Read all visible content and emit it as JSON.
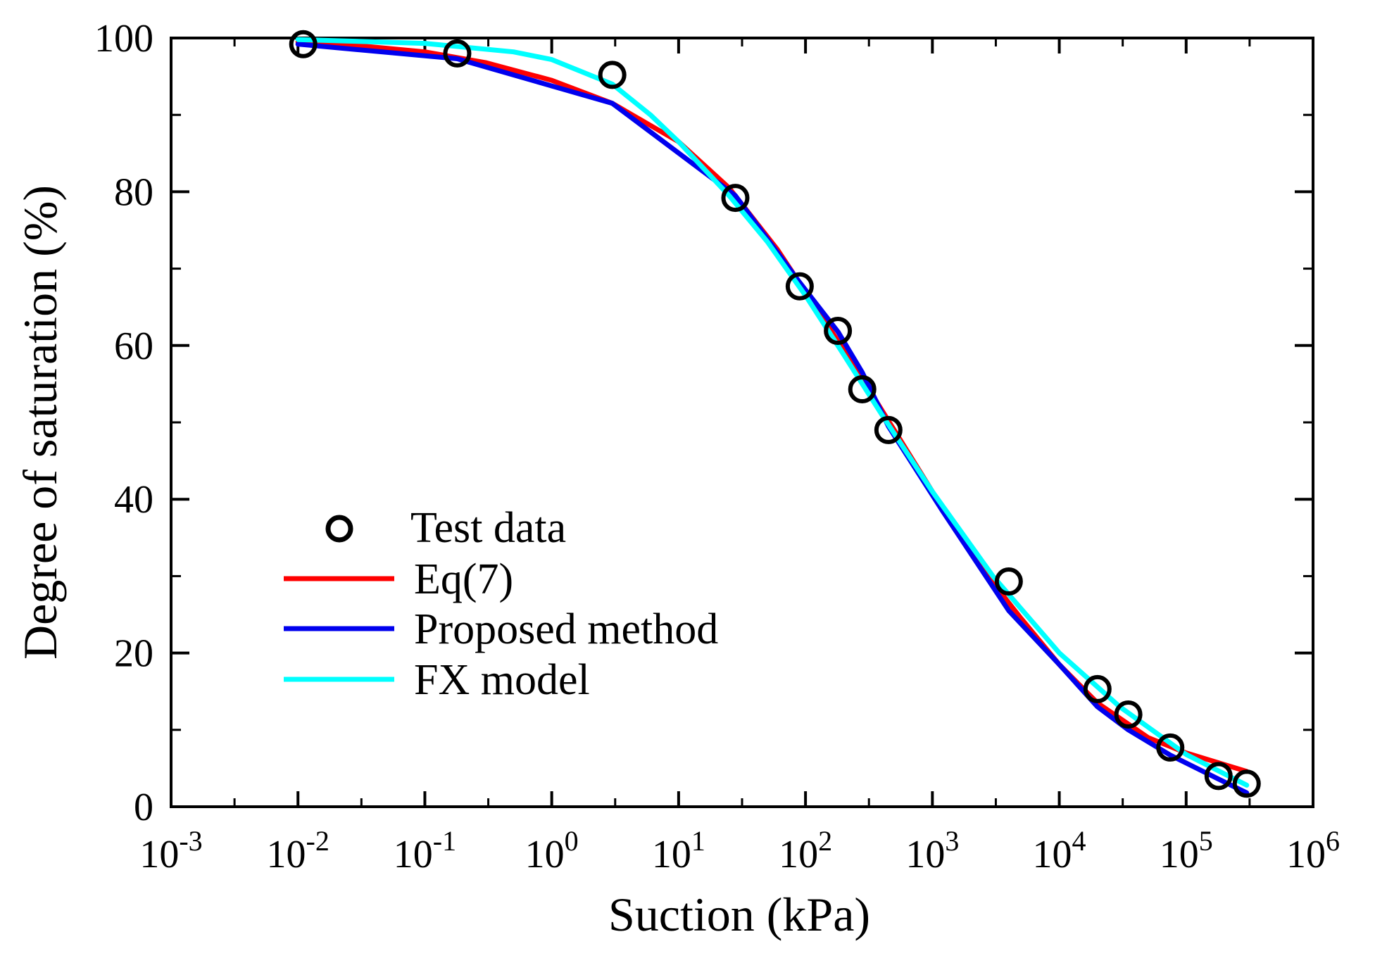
{
  "chart_data": {
    "type": "scatter",
    "title": "",
    "xlabel": "Suction (kPa)",
    "ylabel": "Degree of saturation (%)",
    "xscale": "log",
    "xlim": [
      0.001,
      1000000
    ],
    "ylim": [
      0,
      100
    ],
    "x_ticks": [
      {
        "base": "10",
        "exp": "-3",
        "value": 0.001
      },
      {
        "base": "10",
        "exp": "-2",
        "value": 0.01
      },
      {
        "base": "10",
        "exp": "-1",
        "value": 0.1
      },
      {
        "base": "10",
        "exp": "0",
        "value": 1
      },
      {
        "base": "10",
        "exp": "1",
        "value": 10
      },
      {
        "base": "10",
        "exp": "2",
        "value": 100
      },
      {
        "base": "10",
        "exp": "3",
        "value": 1000
      },
      {
        "base": "10",
        "exp": "4",
        "value": 10000
      },
      {
        "base": "10",
        "exp": "5",
        "value": 100000
      },
      {
        "base": "10",
        "exp": "6",
        "value": 1000000
      }
    ],
    "y_ticks": [
      {
        "label": "0",
        "value": 0
      },
      {
        "label": "20",
        "value": 20
      },
      {
        "label": "40",
        "value": 40
      },
      {
        "label": "60",
        "value": 60
      },
      {
        "label": "80",
        "value": 80
      },
      {
        "label": "100",
        "value": 100
      }
    ],
    "legend_position": "lower-left",
    "series": [
      {
        "name": "Test data",
        "kind": "markers",
        "marker": "open-circle",
        "color": "#000000",
        "points": [
          [
            0.011,
            99.2
          ],
          [
            0.18,
            98.0
          ],
          [
            3.0,
            95.2
          ],
          [
            28,
            79.2
          ],
          [
            90,
            67.7
          ],
          [
            180,
            61.9
          ],
          [
            280,
            54.3
          ],
          [
            450,
            49.0
          ],
          [
            4000,
            29.3
          ],
          [
            20000,
            15.3
          ],
          [
            35000,
            12.0
          ],
          [
            75000,
            7.7
          ],
          [
            180000,
            4.0
          ],
          [
            300000,
            3.0
          ]
        ]
      },
      {
        "name": "Eq(7)",
        "kind": "line",
        "color": "#ff0000",
        "points": [
          [
            0.01,
            99.5
          ],
          [
            0.03,
            99.0
          ],
          [
            0.1,
            98.2
          ],
          [
            0.3,
            96.8
          ],
          [
            1,
            94.5
          ],
          [
            3,
            91.5
          ],
          [
            10,
            86.5
          ],
          [
            25,
            80.5
          ],
          [
            60,
            72.5
          ],
          [
            120,
            65.0
          ],
          [
            250,
            57.0
          ],
          [
            500,
            49.0
          ],
          [
            1000,
            41.0
          ],
          [
            2500,
            30.8
          ],
          [
            5000,
            24.5
          ],
          [
            10000,
            18.5
          ],
          [
            20000,
            13.5
          ],
          [
            50000,
            9.0
          ],
          [
            100000,
            7.0
          ],
          [
            300000,
            4.6
          ]
        ]
      },
      {
        "name": "Proposed method",
        "kind": "line",
        "color": "#0000ee",
        "points": [
          [
            0.01,
            99.2
          ],
          [
            0.18,
            97.3
          ],
          [
            3,
            91.5
          ],
          [
            28,
            79.5
          ],
          [
            90,
            68.2
          ],
          [
            180,
            61.8
          ],
          [
            280,
            56.5
          ],
          [
            450,
            49.5
          ],
          [
            1200,
            38.5
          ],
          [
            4000,
            25.5
          ],
          [
            10000,
            18.5
          ],
          [
            20000,
            13.0
          ],
          [
            35000,
            10.0
          ],
          [
            75000,
            6.7
          ],
          [
            180000,
            3.6
          ],
          [
            300000,
            1.8
          ]
        ]
      },
      {
        "name": "FX model",
        "kind": "line",
        "color": "#00ffff",
        "points": [
          [
            0.01,
            99.8
          ],
          [
            0.1,
            99.3
          ],
          [
            0.5,
            98.2
          ],
          [
            1,
            97.2
          ],
          [
            3,
            94.0
          ],
          [
            6,
            90.0
          ],
          [
            10,
            86.5
          ],
          [
            25,
            79.5
          ],
          [
            50,
            73.5
          ],
          [
            100,
            66.5
          ],
          [
            200,
            58.8
          ],
          [
            400,
            51.0
          ],
          [
            1000,
            41.0
          ],
          [
            3000,
            30.0
          ],
          [
            10000,
            20.0
          ],
          [
            30000,
            13.0
          ],
          [
            100000,
            6.8
          ],
          [
            300000,
            2.8
          ]
        ]
      }
    ]
  }
}
